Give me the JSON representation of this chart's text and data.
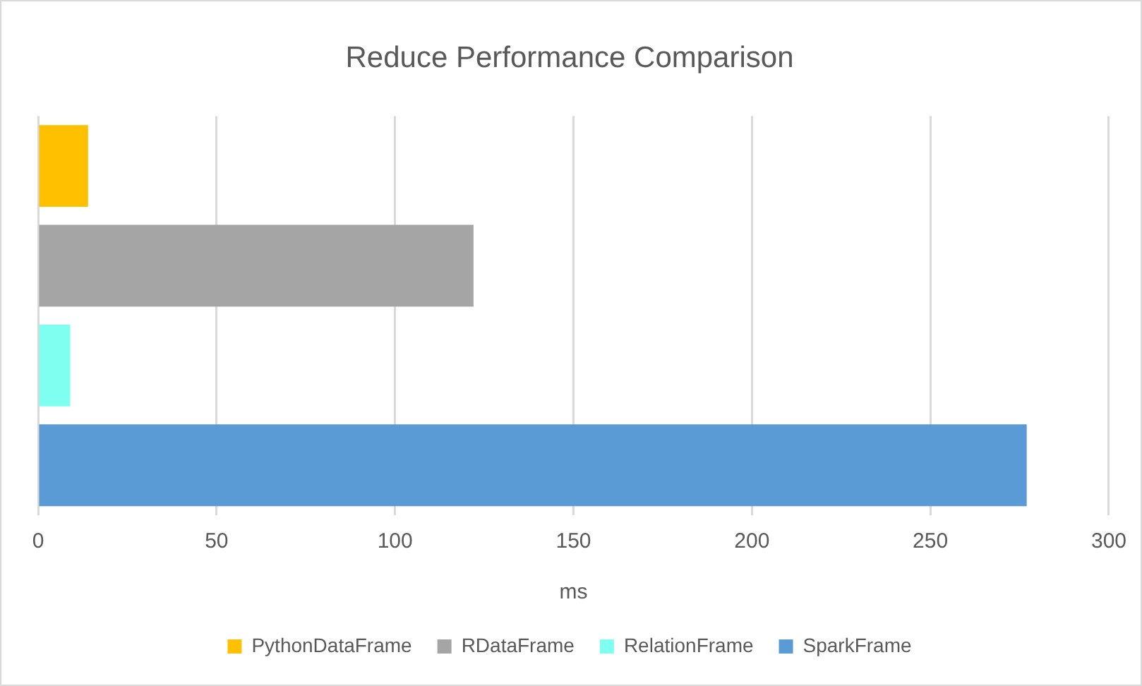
{
  "chart_data": {
    "type": "bar",
    "title": "Reduce Performance Comparison",
    "xlabel": "ms",
    "orientation": "horizontal",
    "categories": [
      null
    ],
    "series": [
      {
        "name": "PythonDataFrame",
        "color": "#ffc000",
        "values": [
          14
        ]
      },
      {
        "name": "RDataFrame",
        "color": "#a5a5a5",
        "values": [
          122
        ]
      },
      {
        "name": "RelationFrame",
        "color": "#7ffff0",
        "values": [
          9
        ]
      },
      {
        "name": "SparkFrame",
        "color": "#5b9bd5",
        "values": [
          277
        ]
      }
    ],
    "xlim": [
      0,
      300
    ],
    "xticks": [
      0,
      50,
      100,
      150,
      200,
      250,
      300
    ],
    "grid": "x",
    "legend": "bottom"
  }
}
